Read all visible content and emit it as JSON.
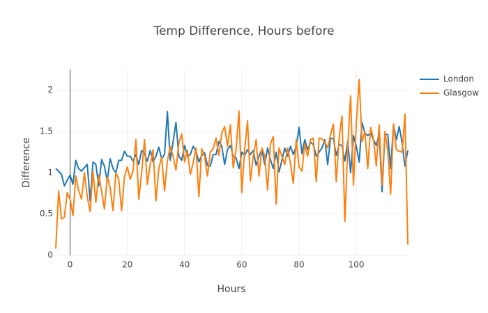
{
  "chart_data": {
    "type": "line",
    "title": "Temp Difference, Hours before",
    "x_label": "Hours",
    "y_label": "Difference",
    "x": [
      -5,
      -4,
      -3,
      -2,
      -1,
      0,
      1,
      2,
      3,
      4,
      5,
      6,
      7,
      8,
      9,
      10,
      11,
      12,
      13,
      14,
      15,
      16,
      17,
      18,
      19,
      20,
      21,
      22,
      23,
      24,
      25,
      26,
      27,
      28,
      29,
      30,
      31,
      32,
      33,
      34,
      35,
      36,
      37,
      38,
      39,
      40,
      41,
      42,
      43,
      44,
      45,
      46,
      47,
      48,
      49,
      50,
      51,
      52,
      53,
      54,
      55,
      56,
      57,
      58,
      59,
      60,
      61,
      62,
      63,
      64,
      65,
      66,
      67,
      68,
      69,
      70,
      71,
      72,
      73,
      74,
      75,
      76,
      77,
      78,
      79,
      80,
      81,
      82,
      83,
      84,
      85,
      86,
      87,
      88,
      89,
      90,
      91,
      92,
      93,
      94,
      95,
      96,
      97,
      98,
      99,
      100,
      101,
      102,
      103,
      104,
      105,
      106,
      107,
      108,
      109,
      110,
      111,
      112,
      113,
      114,
      115,
      116,
      117,
      118
    ],
    "series": [
      {
        "name": "London",
        "color": "#1f77b4",
        "values": [
          1.05,
          1.02,
          0.98,
          0.84,
          0.91,
          0.97,
          0.86,
          1.15,
          1.05,
          1.02,
          1.06,
          1.1,
          0.66,
          1.13,
          1.1,
          0.84,
          1.16,
          1.08,
          0.9,
          1.17,
          1.05,
          1.0,
          1.15,
          1.15,
          1.26,
          1.2,
          1.2,
          1.14,
          1.22,
          1.1,
          1.27,
          1.23,
          1.14,
          1.27,
          1.13,
          1.2,
          1.31,
          1.17,
          1.22,
          1.74,
          1.15,
          1.38,
          1.61,
          1.2,
          1.15,
          1.33,
          1.2,
          1.22,
          1.32,
          1.26,
          1.13,
          1.21,
          1.24,
          1.09,
          1.08,
          1.22,
          1.22,
          1.38,
          1.32,
          1.1,
          1.28,
          1.33,
          1.2,
          1.18,
          1.05,
          1.25,
          1.21,
          1.28,
          1.22,
          1.27,
          1.09,
          1.2,
          1.28,
          1.1,
          1.3,
          1.16,
          1.05,
          1.25,
          1.01,
          1.15,
          1.3,
          1.2,
          1.32,
          1.22,
          1.32,
          1.55,
          1.23,
          1.4,
          1.28,
          1.37,
          1.34,
          1.2,
          1.25,
          1.3,
          1.4,
          1.1,
          1.42,
          1.41,
          1.21,
          1.34,
          1.33,
          1.14,
          1.38,
          1.0,
          1.45,
          1.32,
          1.13,
          1.61,
          1.48,
          1.45,
          1.48,
          1.4,
          1.33,
          1.48,
          0.77,
          1.47,
          1.46,
          1.05,
          1.58,
          1.4,
          1.56,
          1.36,
          1.08,
          1.27
        ]
      },
      {
        "name": "Glasgow",
        "color": "#ff7f0e",
        "values": [
          0.08,
          0.78,
          0.44,
          0.46,
          0.76,
          0.68,
          0.48,
          0.96,
          0.78,
          0.68,
          1.0,
          0.71,
          0.53,
          1.02,
          0.64,
          0.97,
          0.78,
          0.56,
          0.95,
          0.82,
          0.54,
          1.0,
          0.92,
          0.54,
          0.95,
          1.07,
          0.92,
          1.02,
          1.4,
          0.68,
          1.0,
          1.4,
          0.86,
          1.1,
          1.28,
          0.66,
          1.05,
          1.19,
          0.78,
          1.14,
          1.32,
          1.2,
          1.03,
          1.36,
          1.47,
          1.13,
          1.27,
          0.98,
          1.12,
          1.3,
          0.71,
          1.29,
          1.2,
          0.96,
          1.25,
          1.29,
          1.42,
          1.21,
          1.48,
          1.56,
          1.32,
          1.58,
          1.06,
          1.28,
          1.75,
          0.76,
          1.28,
          1.63,
          0.9,
          1.2,
          1.4,
          0.96,
          1.3,
          1.21,
          0.79,
          1.35,
          1.44,
          0.62,
          1.3,
          1.2,
          1.1,
          1.3,
          1.11,
          0.87,
          1.4,
          1.07,
          1.02,
          1.35,
          1.2,
          1.4,
          1.42,
          0.89,
          1.42,
          1.41,
          1.37,
          1.3,
          1.46,
          1.59,
          0.89,
          1.42,
          1.69,
          0.41,
          1.3,
          1.93,
          0.85,
          1.6,
          2.13,
          1.38,
          1.5,
          1.05,
          1.55,
          1.41,
          1.08,
          1.58,
          0.85,
          1.5,
          1.26,
          0.74,
          1.59,
          1.28,
          1.26,
          1.25,
          1.71,
          0.13
        ]
      }
    ],
    "xlim": [
      -5,
      118
    ],
    "ylim": [
      0,
      2.25
    ],
    "xticks": [
      0,
      20,
      40,
      60,
      80,
      100
    ],
    "yticks": [
      0,
      0.5,
      1,
      1.5,
      2
    ],
    "grid": true
  }
}
